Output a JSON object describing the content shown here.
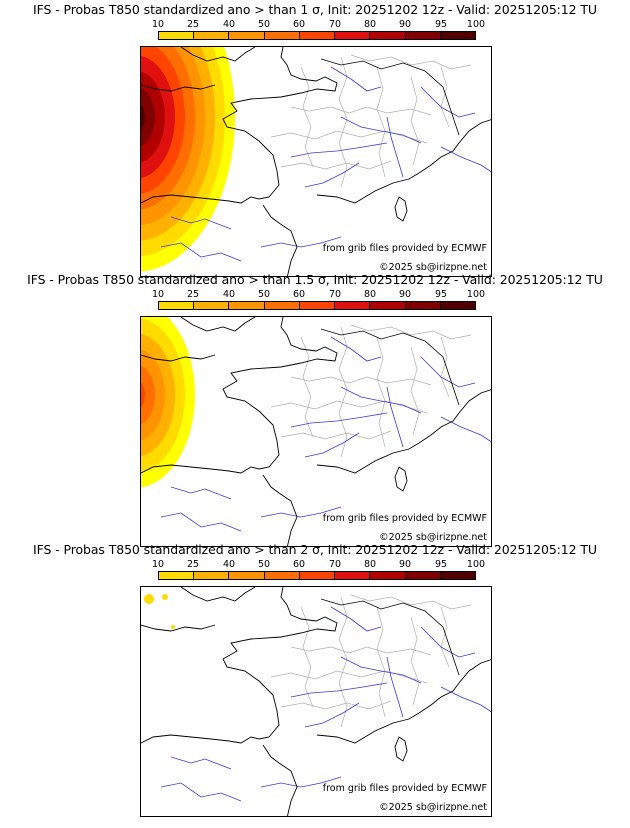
{
  "colorbar": {
    "labels": [
      "10",
      "25",
      "40",
      "50",
      "60",
      "70",
      "80",
      "90",
      "95",
      "100"
    ],
    "colors": [
      "#ffff00",
      "#ffdb00",
      "#ffb000",
      "#ff9400",
      "#ff6e00",
      "#ff4400",
      "#e01010",
      "#b00000",
      "#800000",
      "#500000"
    ]
  },
  "panels": [
    {
      "title": "IFS - Probas T850  standardized ano > than 1 σ, Init: 20251202 12z - Valid: 20251205:12 TU",
      "credit_source": "from grib files provided by ECMWF",
      "credit_site": "©2025 sb@irizpne.net",
      "intensity": 1.0
    },
    {
      "title": "IFS - Probas T850  standardized ano > than 1.5 σ, Init: 20251202 12z - Valid: 20251205:12 TU",
      "credit_source": "from grib files provided by ECMWF",
      "credit_site": "©2025 sb@irizpne.net",
      "intensity": 0.6
    },
    {
      "title": "IFS - Probas T850  standardized ano > than 2 σ, Init: 20251202 12z - Valid: 20251205:12 TU",
      "credit_source": "from grib files provided by ECMWF",
      "credit_site": "©2025 sb@irizpne.net",
      "intensity": 0.05
    }
  ]
}
